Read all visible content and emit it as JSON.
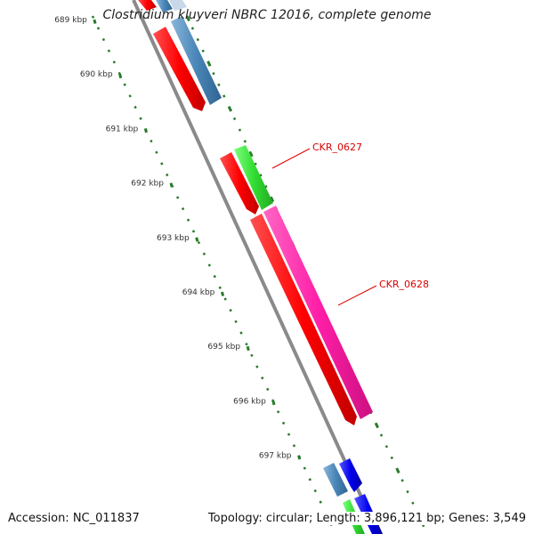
{
  "title": "Clostridium kluyveri NBRC 12016, complete genome",
  "footer": {
    "accession": "Accession: NC_011837",
    "summary": "Topology: circular; Length: 3,896,121 bp; Genes: 3,549"
  },
  "colors": {
    "backbone": "#8a8a8a",
    "tick": "#2a7a2a",
    "label": "#dd0000"
  },
  "ticks": [
    {
      "label": "689 kbp",
      "kbp": 689
    },
    {
      "label": "690 kbp",
      "kbp": 690
    },
    {
      "label": "691 kbp",
      "kbp": 691
    },
    {
      "label": "692 kbp",
      "kbp": 692
    },
    {
      "label": "693 kbp",
      "kbp": 693
    },
    {
      "label": "694 kbp",
      "kbp": 694
    },
    {
      "label": "695 kbp",
      "kbp": 695
    },
    {
      "label": "696 kbp",
      "kbp": 696
    },
    {
      "label": "697 kbp",
      "kbp": 697
    }
  ],
  "gene_labels": [
    {
      "text": "CKR_0627"
    },
    {
      "text": "CKR_0628"
    }
  ]
}
